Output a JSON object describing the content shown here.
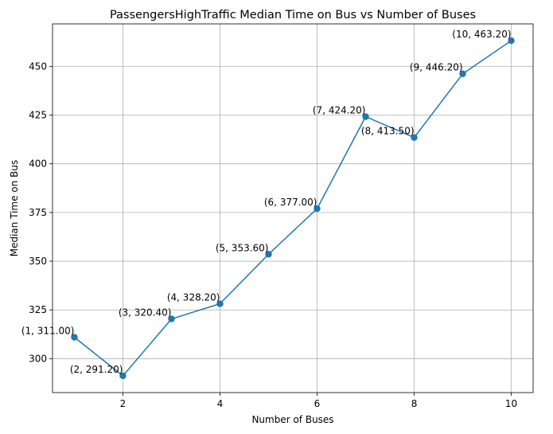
{
  "chart_data": {
    "type": "line",
    "title": "PassengersHighTraffic Median Time on Bus vs Number of Buses",
    "xlabel": "Number of Buses",
    "ylabel": "Median Time on Bus",
    "xlim": [
      0.55,
      10.45
    ],
    "ylim": [
      282.6,
      471.8
    ],
    "xticks": [
      2,
      4,
      6,
      8,
      10
    ],
    "yticks": [
      300,
      325,
      350,
      375,
      400,
      425,
      450
    ],
    "grid": true,
    "series": [
      {
        "color": "#1f77b4",
        "marker": "circle",
        "x": [
          1,
          2,
          3,
          4,
          5,
          6,
          7,
          8,
          9,
          10
        ],
        "y": [
          311.0,
          291.2,
          320.4,
          328.2,
          353.6,
          377.0,
          424.2,
          413.5,
          446.2,
          463.2
        ],
        "labels": [
          "(1, 311.00)",
          "(2, 291.20)",
          "(3, 320.40)",
          "(4, 328.20)",
          "(5, 353.60)",
          "(6, 377.00)",
          "(7, 424.20)",
          "(8, 413.50)",
          "(9, 446.20)",
          "(10, 463.20)"
        ]
      }
    ]
  }
}
